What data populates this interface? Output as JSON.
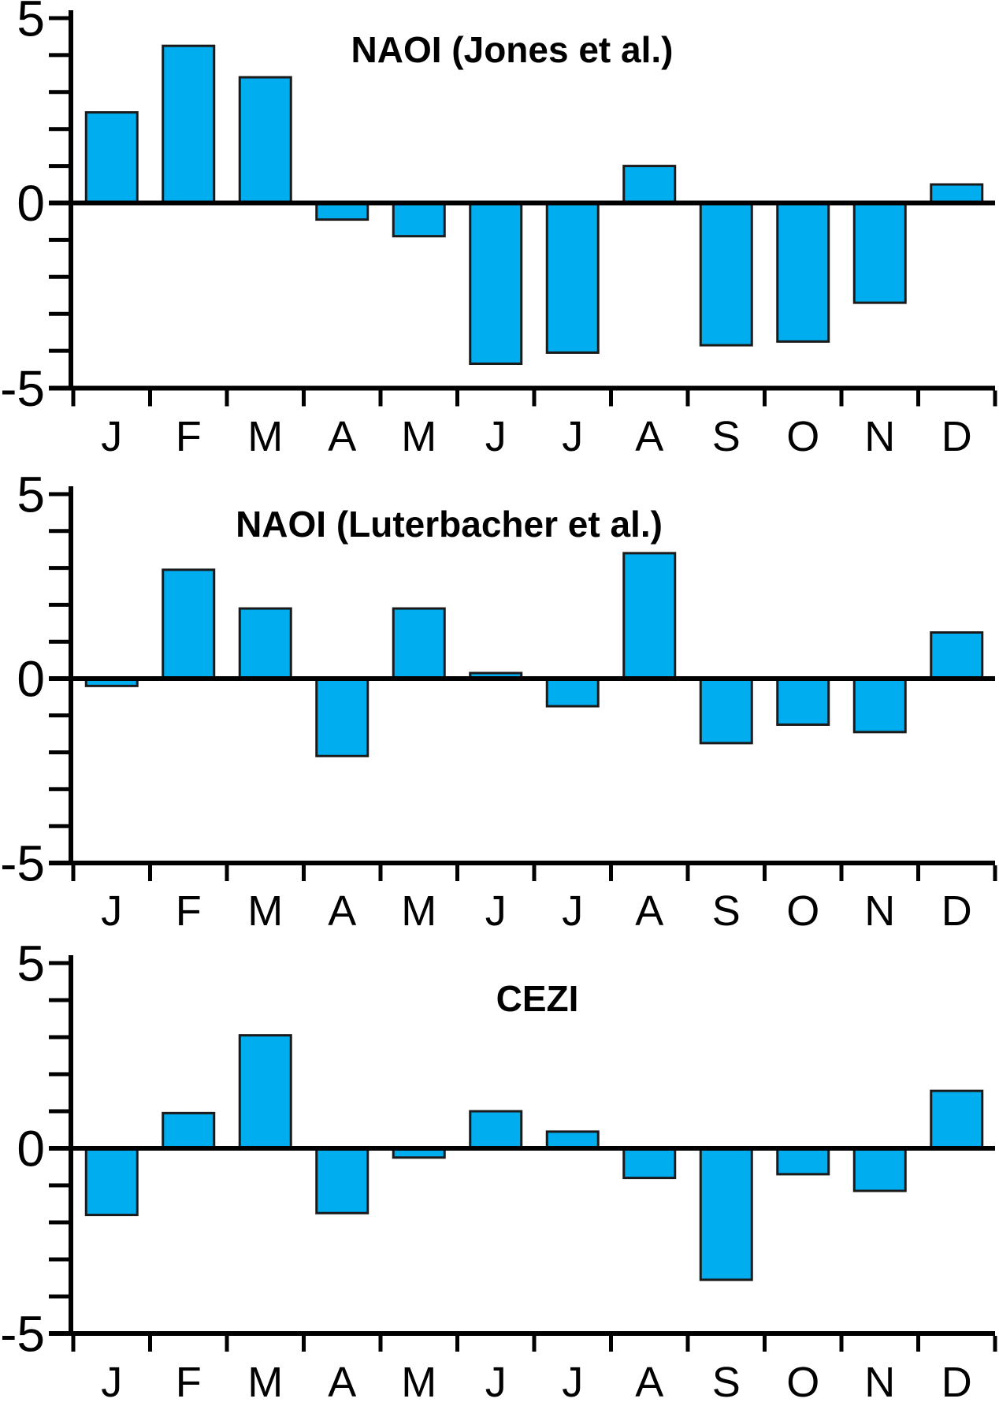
{
  "page": {
    "background": "#FFFFFF"
  },
  "style": {
    "bar_fill": "#00AEEF",
    "bar_stroke": "#1A1A1A",
    "axis_color": "#000000",
    "text_color": "#000000"
  },
  "chart_data": [
    {
      "type": "bar",
      "title": "NAOI (Jones et al.)",
      "categories": [
        "J",
        "F",
        "M",
        "A",
        "M",
        "J",
        "J",
        "A",
        "S",
        "O",
        "N",
        "D"
      ],
      "values": [
        2.45,
        4.25,
        3.4,
        -0.45,
        -0.9,
        -4.35,
        -4.05,
        1.0,
        -3.85,
        -3.75,
        -2.7,
        0.5
      ],
      "ylim": [
        -5,
        5
      ],
      "ytick_labels": [
        "5",
        "0",
        "-5"
      ],
      "minor_tick_step": 1,
      "grid": false,
      "legend": "none",
      "xlabel": "",
      "ylabel": ""
    },
    {
      "type": "bar",
      "title": "NAOI (Luterbacher et al.)",
      "categories": [
        "J",
        "F",
        "M",
        "A",
        "M",
        "J",
        "J",
        "A",
        "S",
        "O",
        "N",
        "D"
      ],
      "values": [
        -0.2,
        2.95,
        1.9,
        -2.1,
        1.9,
        0.15,
        -0.75,
        3.4,
        -1.75,
        -1.25,
        -1.45,
        1.25
      ],
      "ylim": [
        -5,
        5
      ],
      "ytick_labels": [
        "5",
        "0",
        "-5"
      ],
      "minor_tick_step": 1,
      "grid": false,
      "legend": "none",
      "xlabel": "",
      "ylabel": ""
    },
    {
      "type": "bar",
      "title": "CEZI",
      "categories": [
        "J",
        "F",
        "M",
        "A",
        "M",
        "J",
        "J",
        "A",
        "S",
        "O",
        "N",
        "D"
      ],
      "values": [
        -1.8,
        0.95,
        3.05,
        -1.75,
        -0.25,
        1.0,
        0.45,
        -0.8,
        -3.55,
        -0.7,
        -1.15,
        1.55
      ],
      "ylim": [
        -5,
        5
      ],
      "ytick_labels": [
        "5",
        "0",
        "-5"
      ],
      "minor_tick_step": 1,
      "grid": false,
      "legend": "none",
      "xlabel": "",
      "ylabel": ""
    }
  ]
}
